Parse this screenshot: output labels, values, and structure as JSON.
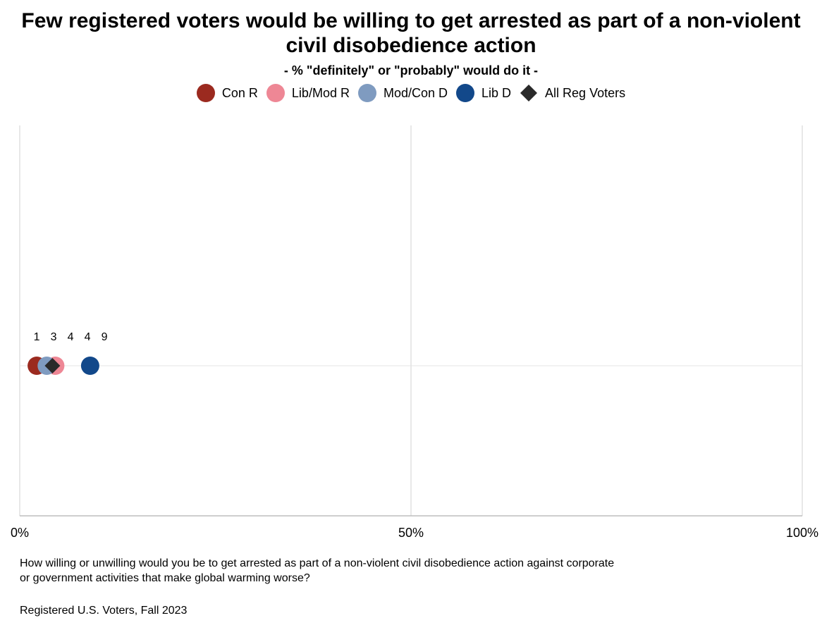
{
  "chart_data": {
    "type": "dot",
    "title": "Few registered voters would be willing to get arrested as part of a non-violent civil disobedience action",
    "subtitle": "- % \"definitely\" or \"probably\" would do it -",
    "xlim": [
      0,
      100
    ],
    "x_ticks": [
      {
        "value": 0,
        "label": "0%"
      },
      {
        "value": 50,
        "label": "50%"
      },
      {
        "value": 100,
        "label": "100%"
      }
    ],
    "grid": true,
    "legend_position": "top",
    "series": [
      {
        "name": "Con R",
        "value": 1,
        "label": "1",
        "color": "#9b2a1f",
        "shape": "circle"
      },
      {
        "name": "Lib/Mod R",
        "value": 4,
        "label": "4",
        "color": "#ee8795",
        "shape": "circle"
      },
      {
        "name": "Mod/Con D",
        "value": 3,
        "label": "3",
        "color": "#7f9bc0",
        "shape": "circle"
      },
      {
        "name": "Lib D",
        "value": 9,
        "label": "9",
        "color": "#12488a",
        "shape": "circle"
      },
      {
        "name": "All Reg Voters",
        "value": 4,
        "label": "4",
        "color": "#2a2a2a",
        "shape": "diamond"
      }
    ]
  },
  "footnote": "How willing or unwilling would you be to get arrested as part of a non-violent civil disobedience action against corporate or government activities that make global warming worse?",
  "source": "Registered U.S. Voters, Fall 2023"
}
